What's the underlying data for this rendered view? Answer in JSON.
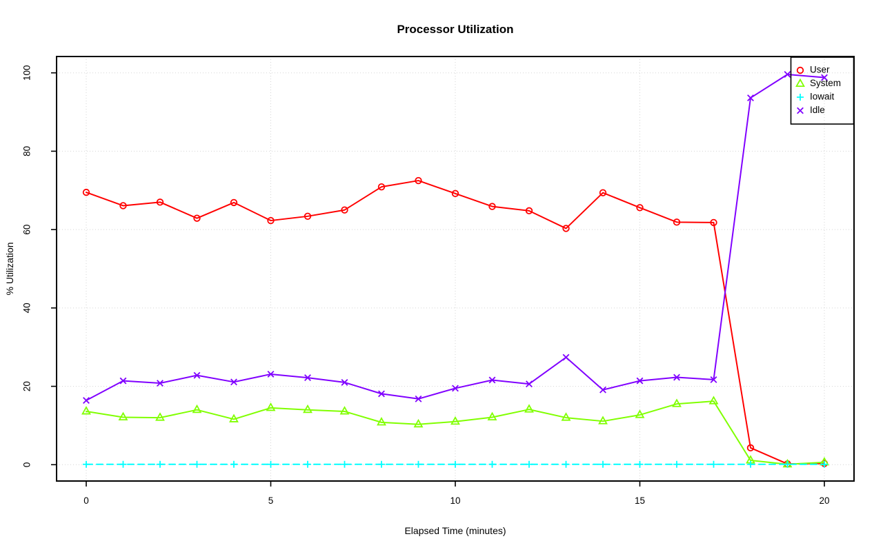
{
  "chart_data": {
    "type": "line",
    "title": "Processor Utilization",
    "xlabel": "Elapsed Time (minutes)",
    "ylabel": "% Utilization",
    "xlim": [
      0,
      20
    ],
    "ylim": [
      0,
      100
    ],
    "xticks": [
      0,
      5,
      10,
      15,
      20
    ],
    "yticks": [
      0,
      20,
      40,
      60,
      80,
      100
    ],
    "grid": "dotted",
    "grid_color": "#d3d3d3",
    "legend_position": "top-right",
    "x": [
      0,
      1,
      2,
      3,
      4,
      5,
      6,
      7,
      8,
      9,
      10,
      11,
      12,
      13,
      14,
      15,
      16,
      17,
      18,
      19,
      20
    ],
    "series": [
      {
        "name": "User",
        "color": "#ff0000",
        "marker": "circle",
        "line": "solid",
        "values": [
          69.5,
          66.1,
          67.0,
          62.9,
          66.9,
          62.3,
          63.4,
          65.0,
          70.9,
          72.5,
          69.2,
          65.9,
          64.8,
          60.3,
          69.4,
          65.6,
          61.9,
          61.8,
          4.3,
          0.2,
          0.3
        ]
      },
      {
        "name": "System",
        "color": "#80ff00",
        "marker": "triangle",
        "line": "solid",
        "values": [
          13.6,
          12.1,
          12.0,
          14.0,
          11.6,
          14.5,
          14.0,
          13.6,
          10.8,
          10.3,
          11.0,
          12.1,
          14.1,
          12.0,
          11.1,
          12.7,
          15.5,
          16.2,
          1.1,
          0.1,
          0.6
        ]
      },
      {
        "name": "Iowait",
        "color": "#00ffff",
        "marker": "plus",
        "line": "dashed",
        "values": [
          0.1,
          0.1,
          0.1,
          0.1,
          0.1,
          0.1,
          0.1,
          0.1,
          0.1,
          0.1,
          0.1,
          0.1,
          0.1,
          0.1,
          0.1,
          0.1,
          0.1,
          0.1,
          0.1,
          0.1,
          0.1
        ]
      },
      {
        "name": "Idle",
        "color": "#8000ff",
        "marker": "x",
        "line": "solid",
        "values": [
          16.4,
          21.4,
          20.8,
          22.8,
          21.1,
          23.1,
          22.2,
          21.0,
          18.1,
          16.8,
          19.5,
          21.6,
          20.6,
          27.4,
          19.1,
          21.4,
          22.3,
          21.7,
          93.6,
          99.6,
          98.8
        ]
      }
    ]
  }
}
